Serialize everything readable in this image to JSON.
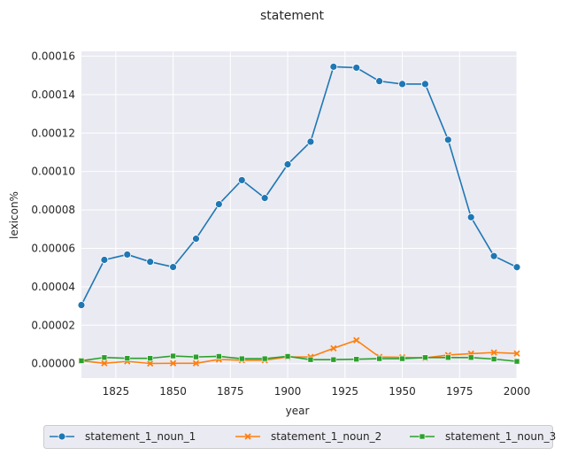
{
  "chart_data": {
    "type": "line",
    "title": "statement",
    "xlabel": "year",
    "ylabel": "lexicon%",
    "xlim": [
      1810,
      2000
    ],
    "ylim": [
      -7.5e-06,
      0.0001625
    ],
    "xticks": [
      1825,
      1850,
      1875,
      1900,
      1925,
      1950,
      1975,
      2000
    ],
    "yticks": [
      0.0,
      2e-05,
      4e-05,
      6e-05,
      8e-05,
      0.0001,
      0.00012,
      0.00014,
      0.00016
    ],
    "ytick_labels": [
      "0.00000",
      "0.00002",
      "0.00004",
      "0.00006",
      "0.00008",
      "0.00010",
      "0.00012",
      "0.00014",
      "0.00016"
    ],
    "grid": true,
    "legend_position": "bottom-center",
    "x": [
      1810,
      1820,
      1830,
      1840,
      1850,
      1860,
      1870,
      1880,
      1890,
      1900,
      1910,
      1920,
      1930,
      1940,
      1950,
      1960,
      1970,
      1980,
      1990,
      2000
    ],
    "series": [
      {
        "name": "statement_1_noun_1",
        "color": "#1f77b4",
        "marker": "circle",
        "values": [
          3.05e-05,
          5.4e-05,
          5.68e-05,
          5.3e-05,
          5.03e-05,
          6.5e-05,
          8.3e-05,
          9.55e-05,
          8.62e-05,
          0.0001037,
          0.0001155,
          0.0001545,
          0.000154,
          0.000147,
          0.0001455,
          0.0001455,
          0.0001165,
          7.62e-05,
          5.6e-05,
          5.02e-05
        ]
      },
      {
        "name": "statement_1_noun_2",
        "color": "#ff7f0e",
        "marker": "x",
        "values": [
          1.5e-06,
          2e-07,
          1.2e-06,
          1e-07,
          2e-07,
          2e-07,
          2.2e-06,
          1.8e-06,
          1.8e-06,
          3.5e-06,
          3.5e-06,
          8e-06,
          1.22e-05,
          3.5e-06,
          3.3e-06,
          3e-06,
          4.5e-06,
          5.2e-06,
          5.8e-06,
          5.3e-06
        ]
      },
      {
        "name": "statement_1_noun_3",
        "color": "#2ca02c",
        "marker": "square",
        "values": [
          1.5e-06,
          3.2e-06,
          2.8e-06,
          2.8e-06,
          4e-06,
          3.5e-06,
          3.8e-06,
          2.6e-06,
          2.6e-06,
          3.8e-06,
          2.1e-06,
          2.1e-06,
          2.3e-06,
          2.6e-06,
          2.6e-06,
          3.2e-06,
          3.2e-06,
          3.2e-06,
          2.4e-06,
          1.2e-06
        ]
      }
    ]
  }
}
